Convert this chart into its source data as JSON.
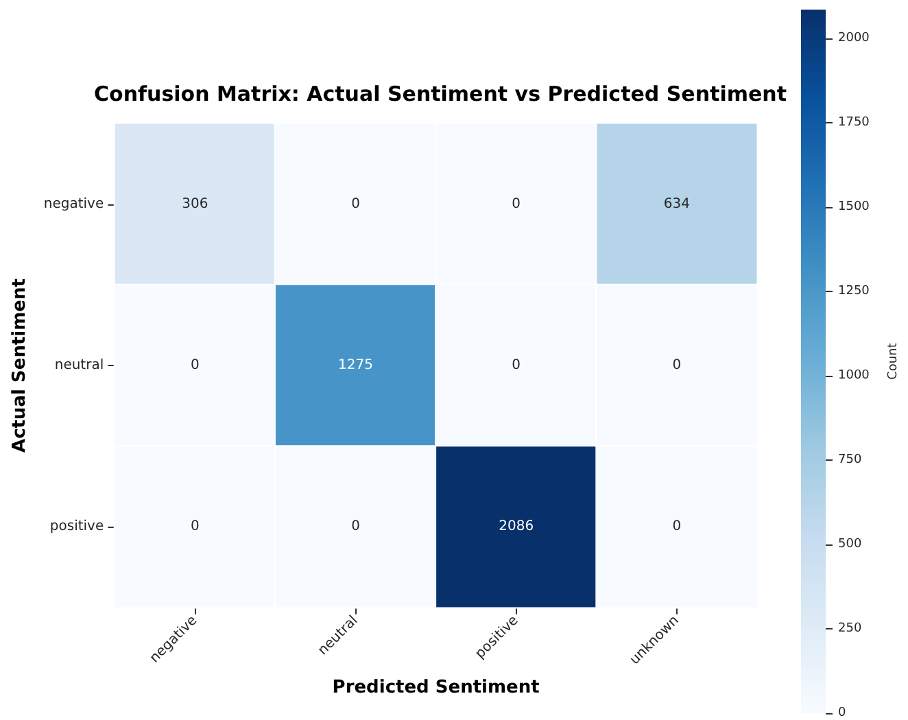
{
  "chart_data": {
    "type": "heatmap",
    "title": "Confusion Matrix: Actual Sentiment vs Predicted Sentiment",
    "xlabel": "Predicted Sentiment",
    "ylabel": "Actual Sentiment",
    "clabel": "Count",
    "categories": [
      "negative",
      "neutral",
      "positive",
      "unknown"
    ],
    "y_categories": [
      "negative",
      "neutral",
      "positive"
    ],
    "cells": [
      [
        306,
        0,
        0,
        634
      ],
      [
        0,
        1275,
        0,
        0
      ],
      [
        0,
        0,
        2086,
        0
      ]
    ],
    "clim": [
      0,
      2086
    ],
    "cticks": [
      0,
      250,
      500,
      750,
      1000,
      1250,
      1500,
      1750,
      2000
    ],
    "data_labels": true
  }
}
